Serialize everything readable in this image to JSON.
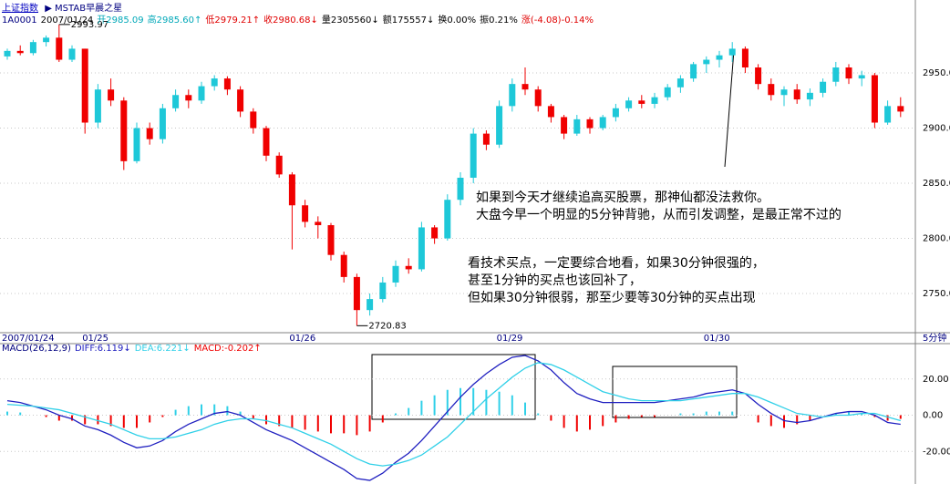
{
  "header": {
    "index_name": "上证指数",
    "indicator": "▶ MSTAB早晨之星",
    "quote": [
      {
        "text": "1A0001",
        "color": "#000080"
      },
      {
        "text": "2007/01/24",
        "color": "#000000"
      },
      {
        "text": "开2985.09",
        "color": "#00a8b8"
      },
      {
        "text": "高2985.60↑",
        "color": "#00a8b8"
      },
      {
        "text": "低2979.21↑",
        "color": "#e00000"
      },
      {
        "text": "收2980.68↓",
        "color": "#e00000"
      },
      {
        "text": "量2305560↓",
        "color": "#000000"
      },
      {
        "text": "额175557↓",
        "color": "#000000"
      },
      {
        "text": "换0.00%",
        "color": "#000000"
      },
      {
        "text": "振0.21%",
        "color": "#000000"
      },
      {
        "text": "涨(-4.08)-0.14%",
        "color": "#e00000"
      }
    ]
  },
  "notes": [
    [
      "如果到今天才继续追高买股票，那神仙都没法救你。",
      "大盘今早一个明显的5分钟背驰，从而引发调整，是最正常不过的"
    ],
    [
      "看技术买点，一定要综合地看，如果30分钟很强的，",
      "甚至1分钟的买点也该回补了，",
      "但如果30分钟很弱，那至少要等30分钟的买点出现"
    ]
  ],
  "chart_data": [
    {
      "type": "candlestick",
      "period": "5分钟",
      "categories": [
        "2007/01/24",
        null,
        null,
        null,
        null,
        null,
        "01/25",
        null,
        null,
        null,
        null,
        null,
        null,
        null,
        null,
        null,
        null,
        null,
        null,
        null,
        null,
        null,
        "01/26",
        null,
        null,
        null,
        null,
        null,
        null,
        null,
        null,
        null,
        null,
        null,
        null,
        null,
        null,
        null,
        "01/29",
        null,
        null,
        null,
        null,
        null,
        null,
        null,
        null,
        null,
        null,
        null,
        null,
        null,
        null,
        null,
        "01/30",
        null,
        null,
        null,
        null,
        null,
        null,
        null,
        null,
        null,
        null,
        null,
        null,
        null,
        null,
        null
      ],
      "open": [
        2965,
        2970,
        2968,
        2978,
        2982,
        2962,
        2972,
        2905,
        2935,
        2925,
        2870,
        2900,
        2890,
        2918,
        2930,
        2925,
        2938,
        2945,
        2935,
        2915,
        2900,
        2875,
        2858,
        2830,
        2815,
        2812,
        2785,
        2765,
        2735,
        2745,
        2760,
        2775,
        2772,
        2810,
        2800,
        2835,
        2855,
        2895,
        2885,
        2920,
        2940,
        2935,
        2920,
        2910,
        2895,
        2908,
        2900,
        2910,
        2918,
        2925,
        2922,
        2928,
        2937,
        2945,
        2958,
        2962,
        2966,
        2972,
        2955,
        2940,
        2930,
        2935,
        2926,
        2932,
        2942,
        2955,
        2945,
        2948,
        2905,
        2920
      ],
      "high": [
        2972,
        2975,
        2980,
        2984,
        2993.97,
        2975,
        2972,
        2940,
        2945,
        2928,
        2905,
        2905,
        2922,
        2935,
        2935,
        2942,
        2948,
        2947,
        2938,
        2918,
        2902,
        2878,
        2860,
        2835,
        2820,
        2814,
        2788,
        2768,
        2750,
        2765,
        2780,
        2782,
        2815,
        2812,
        2840,
        2860,
        2900,
        2898,
        2925,
        2945,
        2955,
        2938,
        2922,
        2912,
        2912,
        2910,
        2912,
        2922,
        2928,
        2930,
        2932,
        2940,
        2948,
        2960,
        2965,
        2970,
        2978,
        2974,
        2958,
        2945,
        2938,
        2940,
        2936,
        2945,
        2960,
        2958,
        2952,
        2950,
        2925,
        2928
      ],
      "low": [
        2962,
        2966,
        2966,
        2974,
        2960,
        2960,
        2895,
        2900,
        2920,
        2862,
        2868,
        2885,
        2886,
        2915,
        2918,
        2922,
        2934,
        2930,
        2910,
        2895,
        2870,
        2855,
        2790,
        2810,
        2800,
        2780,
        2760,
        2720.83,
        2730,
        2742,
        2756,
        2768,
        2770,
        2795,
        2798,
        2830,
        2850,
        2880,
        2882,
        2915,
        2930,
        2915,
        2905,
        2890,
        2893,
        2895,
        2898,
        2906,
        2915,
        2918,
        2918,
        2925,
        2932,
        2942,
        2950,
        2955,
        2960,
        2950,
        2935,
        2925,
        2920,
        2922,
        2920,
        2928,
        2938,
        2940,
        2938,
        2900,
        2903,
        2910
      ],
      "close": [
        2970,
        2968,
        2978,
        2982,
        2962,
        2972,
        2905,
        2935,
        2925,
        2870,
        2900,
        2890,
        2918,
        2930,
        2925,
        2938,
        2945,
        2935,
        2915,
        2900,
        2875,
        2858,
        2830,
        2815,
        2812,
        2785,
        2765,
        2735,
        2745,
        2760,
        2775,
        2772,
        2810,
        2800,
        2835,
        2855,
        2895,
        2885,
        2920,
        2940,
        2935,
        2920,
        2910,
        2895,
        2908,
        2900,
        2910,
        2918,
        2925,
        2922,
        2928,
        2937,
        2945,
        2958,
        2962,
        2966,
        2972,
        2955,
        2940,
        2930,
        2935,
        2926,
        2932,
        2942,
        2955,
        2945,
        2948,
        2905,
        2920,
        2915
      ],
      "annotations": [
        {
          "text": "2993.97"
        },
        {
          "text": "2720.83"
        }
      ],
      "up_color": "#1ec8d8",
      "down_color": "#f00000",
      "ylim": [
        2714.5,
        2995.5
      ],
      "yticks": [
        {
          "value": 2750,
          "label": "2750.00"
        },
        {
          "value": 2800,
          "label": "2800.00"
        },
        {
          "value": 2850,
          "label": "2850.00"
        },
        {
          "value": 2900,
          "label": "2900.00"
        },
        {
          "value": 2950,
          "label": "2950.00"
        }
      ],
      "grid": true
    },
    {
      "type": "macd",
      "title": "MACD(26,12,9)",
      "series": [
        {
          "name": "DIFF:6.119↓",
          "color": "#2020c0",
          "values": [
            8,
            7,
            5,
            3,
            0,
            -2,
            -6,
            -8,
            -11,
            -15,
            -18,
            -17,
            -14,
            -9,
            -5,
            -2,
            1,
            2,
            0,
            -4,
            -8,
            -11,
            -14,
            -18,
            -22,
            -26,
            -30,
            -35,
            -36,
            -32,
            -26,
            -21,
            -14,
            -6,
            2,
            10,
            17,
            23,
            28,
            32,
            33,
            30,
            25,
            18,
            12,
            9,
            7,
            7,
            7,
            7,
            7,
            8,
            9,
            10,
            12,
            13,
            14,
            12,
            6,
            1,
            -3,
            -4,
            -3,
            -1,
            1,
            2,
            2,
            0,
            -4,
            -5
          ]
        },
        {
          "name": "DEA:6.221↓",
          "color": "#30d0e8",
          "values": [
            6,
            5.5,
            5,
            4,
            3,
            1,
            -1,
            -3,
            -5,
            -8,
            -11,
            -13,
            -13,
            -12,
            -10,
            -8,
            -5,
            -3,
            -2,
            -2,
            -3,
            -5,
            -7,
            -10,
            -13,
            -16,
            -20,
            -24,
            -27,
            -28,
            -27,
            -25,
            -22,
            -17,
            -12,
            -5,
            2,
            9,
            15,
            21,
            26,
            29,
            28,
            25,
            21,
            17,
            13,
            11,
            9,
            8,
            8,
            8,
            8,
            9,
            10,
            11,
            12,
            12,
            10,
            7,
            4,
            1,
            0,
            -1,
            0,
            0,
            1,
            1,
            -1,
            -3
          ]
        }
      ],
      "macd": {
        "name": "MACD:-0.202↑",
        "pos_color": "#30d0e8",
        "neg_color": "#f00000",
        "values": [
          2,
          1.5,
          0,
          -1,
          -3,
          -3,
          -5,
          -5,
          -6,
          -7,
          -7,
          -4,
          -1,
          3,
          5,
          6,
          6,
          5,
          2,
          -2,
          -5,
          -6,
          -7,
          -8,
          -9,
          -10,
          -10,
          -11,
          -9,
          -4,
          1,
          4,
          8,
          11,
          14,
          15,
          15,
          14,
          13,
          11,
          7,
          1,
          -3,
          -7,
          -9,
          -8,
          -6,
          -4,
          -2,
          -1,
          -1,
          0,
          1,
          1,
          2,
          2,
          2,
          0,
          -4,
          -6,
          -7,
          -5,
          -3,
          0,
          1,
          2,
          1,
          -1,
          -3,
          -2
        ]
      },
      "ylim": [
        -38,
        33.5
      ],
      "yticks": [
        {
          "value": -20,
          "label": "-20.00"
        },
        {
          "value": 0,
          "label": "0.00"
        },
        {
          "value": 20,
          "label": "20.00"
        }
      ]
    }
  ]
}
